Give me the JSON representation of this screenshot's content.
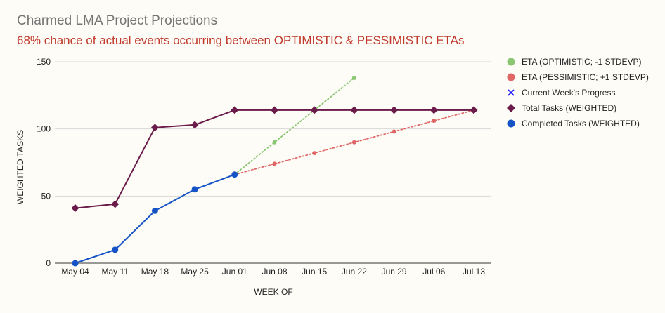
{
  "title": "Charmed LMA Project Projections",
  "subtitle": "68% chance of actual events occurring between OPTIMISTIC & PESSIMISTIC ETAs",
  "colors": {
    "optimistic": "#8bc672",
    "pessimistic": "#e06666",
    "current": "#1a1aff",
    "total": "#6b1b4a",
    "completed": "#1552c5",
    "subtitle": "#c0392b"
  },
  "chart_data": {
    "type": "line",
    "xlabel": "WEEK OF",
    "ylabel": "WEIGHTED TASKS",
    "ylim": [
      0,
      150
    ],
    "yticks": [
      0,
      50,
      100,
      150
    ],
    "grid": true,
    "legend_position": "right",
    "categories": [
      "May 04",
      "May 11",
      "May 18",
      "May 25",
      "Jun 01",
      "Jun 08",
      "Jun 15",
      "Jun 22",
      "Jun 29",
      "Jul 06",
      "Jul 13"
    ],
    "series": [
      {
        "name": "ETA (OPTIMISTIC; -1 STDEVP)",
        "style": "dotted",
        "marker": "circle",
        "values": [
          null,
          null,
          null,
          null,
          66,
          90,
          null,
          138,
          null,
          null,
          null
        ]
      },
      {
        "name": "ETA (PESSIMISTIC; +1 STDEVP)",
        "style": "dotted",
        "marker": "circle",
        "values": [
          null,
          null,
          null,
          null,
          66,
          74,
          82,
          90,
          98,
          106,
          114
        ]
      },
      {
        "name": "Current Week's Progress",
        "style": "none",
        "marker": "x",
        "values": [
          null,
          null,
          null,
          null,
          null,
          null,
          null,
          null,
          null,
          null,
          null
        ]
      },
      {
        "name": "Total Tasks (WEIGHTED)",
        "style": "solid",
        "marker": "diamond",
        "values": [
          41,
          44,
          101,
          103,
          114,
          114,
          114,
          114,
          114,
          114,
          114
        ]
      },
      {
        "name": "Completed Tasks (WEIGHTED)",
        "style": "solid",
        "marker": "circle",
        "values": [
          0,
          10,
          39,
          55,
          66,
          null,
          null,
          null,
          null,
          null,
          null
        ]
      }
    ]
  }
}
